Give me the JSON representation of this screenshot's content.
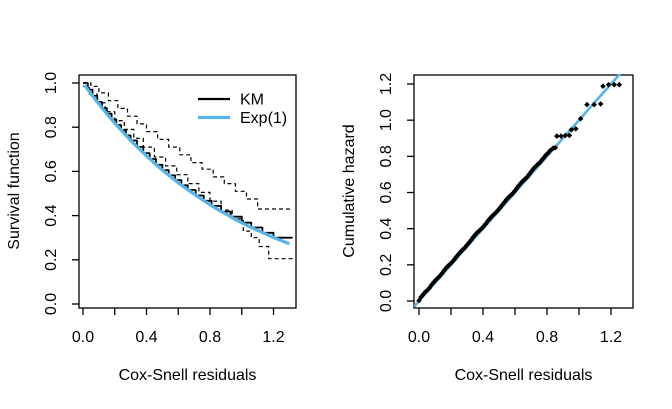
{
  "figure": {
    "background": "#ffffff",
    "text_color": "#000000",
    "accent_blue": "#56B4E9",
    "line_black": "#000000"
  },
  "chart_data": [
    {
      "type": "line",
      "title": "",
      "xlabel": "Cox-Snell residuals",
      "ylabel": "Survival function",
      "xlim": [
        -0.03,
        1.34
      ],
      "ylim": [
        -0.02,
        1.04
      ],
      "grid": false,
      "xticks": {
        "values": [
          0.0,
          0.2,
          0.4,
          0.6,
          0.8,
          1.0,
          1.2
        ],
        "labels": [
          "0.0",
          "",
          "0.4",
          "",
          "0.8",
          "",
          "1.2"
        ]
      },
      "yticks": {
        "values": [
          0.0,
          0.2,
          0.4,
          0.6,
          0.8,
          1.0
        ],
        "labels": [
          "0.0",
          "0.2",
          "0.4",
          "0.6",
          "0.8",
          "1.0"
        ]
      },
      "legend": {
        "position": "topright",
        "entries": [
          {
            "label": "KM",
            "color": "#000000",
            "line_width": 2.2
          },
          {
            "label": "Exp(1)",
            "color": "#56B4E9",
            "line_width": 3.2
          }
        ]
      },
      "series": [
        {
          "name": "km-upper-ci",
          "style": "step",
          "dash": "dashed",
          "width": 1.2,
          "color": "#000000",
          "x": [
            0.0,
            0.05,
            0.1,
            0.16,
            0.22,
            0.28,
            0.34,
            0.4,
            0.47,
            0.54,
            0.61,
            0.68,
            0.75,
            0.82,
            0.89,
            0.96,
            1.03,
            1.1,
            1.32
          ],
          "y": [
            1.0,
            0.985,
            0.955,
            0.92,
            0.885,
            0.85,
            0.815,
            0.78,
            0.745,
            0.71,
            0.675,
            0.64,
            0.61,
            0.575,
            0.545,
            0.51,
            0.475,
            0.43,
            0.43
          ]
        },
        {
          "name": "km-lower-ci",
          "style": "step",
          "dash": "dashed",
          "width": 1.2,
          "color": "#000000",
          "x": [
            0.0,
            0.04,
            0.09,
            0.14,
            0.2,
            0.26,
            0.32,
            0.38,
            0.45,
            0.52,
            0.59,
            0.66,
            0.73,
            0.8,
            0.87,
            0.94,
            1.01,
            1.06,
            1.11,
            1.17,
            1.32
          ],
          "y": [
            0.985,
            0.95,
            0.91,
            0.87,
            0.83,
            0.79,
            0.75,
            0.71,
            0.665,
            0.625,
            0.585,
            0.545,
            0.505,
            0.465,
            0.425,
            0.385,
            0.33,
            0.3,
            0.26,
            0.205,
            0.205
          ]
        },
        {
          "name": "km",
          "style": "step",
          "dash": "solid",
          "width": 1.8,
          "color": "#000000",
          "x": [
            0.0,
            0.03,
            0.06,
            0.09,
            0.12,
            0.15,
            0.18,
            0.21,
            0.24,
            0.27,
            0.3,
            0.34,
            0.38,
            0.42,
            0.46,
            0.5,
            0.54,
            0.58,
            0.62,
            0.66,
            0.71,
            0.76,
            0.81,
            0.87,
            0.93,
            1.0,
            1.06,
            1.13,
            1.2,
            1.32
          ],
          "y": [
            1.0,
            0.97,
            0.942,
            0.914,
            0.887,
            0.861,
            0.835,
            0.81,
            0.786,
            0.763,
            0.74,
            0.711,
            0.683,
            0.656,
            0.63,
            0.606,
            0.582,
            0.56,
            0.537,
            0.516,
            0.491,
            0.467,
            0.444,
            0.418,
            0.395,
            0.368,
            0.346,
            0.322,
            0.3,
            0.3
          ]
        },
        {
          "name": "exp1",
          "style": "line",
          "dash": "solid",
          "width": 3.2,
          "color": "#56B4E9",
          "x": [
            0.01,
            0.06,
            0.11,
            0.16,
            0.21,
            0.26,
            0.31,
            0.36,
            0.41,
            0.46,
            0.51,
            0.56,
            0.61,
            0.66,
            0.71,
            0.76,
            0.81,
            0.86,
            0.91,
            0.96,
            1.01,
            1.06,
            1.11,
            1.16,
            1.21,
            1.26,
            1.3
          ],
          "y": [
            0.99,
            0.942,
            0.896,
            0.852,
            0.811,
            0.771,
            0.733,
            0.698,
            0.664,
            0.631,
            0.6,
            0.571,
            0.543,
            0.517,
            0.492,
            0.468,
            0.445,
            0.423,
            0.403,
            0.383,
            0.364,
            0.346,
            0.33,
            0.314,
            0.298,
            0.284,
            0.273
          ]
        }
      ]
    },
    {
      "type": "scatter",
      "title": "",
      "xlabel": "Cox-Snell residuals",
      "ylabel": "Cumulative hazard",
      "xlim": [
        -0.03,
        1.34
      ],
      "ylim": [
        -0.04,
        1.25
      ],
      "grid": false,
      "xticks": {
        "values": [
          0.0,
          0.2,
          0.4,
          0.6,
          0.8,
          1.0,
          1.2
        ],
        "labels": [
          "0.0",
          "",
          "0.4",
          "",
          "0.8",
          "",
          "1.2"
        ]
      },
      "yticks": {
        "values": [
          0.0,
          0.2,
          0.4,
          0.6,
          0.8,
          1.0,
          1.2
        ],
        "labels": [
          "0.0",
          "0.2",
          "0.4",
          "0.6",
          "0.8",
          "1.0",
          "1.2"
        ]
      },
      "refline": {
        "intercept": 0,
        "slope": 1,
        "color": "#56B4E9",
        "width": 2.6
      },
      "points": {
        "marker": "diamond",
        "color": "#000000",
        "size": 2.8,
        "x": [
          0.0,
          0.013,
          0.026,
          0.039,
          0.052,
          0.065,
          0.078,
          0.091,
          0.104,
          0.117,
          0.13,
          0.143,
          0.156,
          0.169,
          0.182,
          0.195,
          0.208,
          0.221,
          0.234,
          0.247,
          0.26,
          0.273,
          0.286,
          0.299,
          0.312,
          0.325,
          0.338,
          0.351,
          0.364,
          0.377,
          0.39,
          0.403,
          0.416,
          0.429,
          0.442,
          0.455,
          0.468,
          0.481,
          0.494,
          0.507,
          0.52,
          0.533,
          0.546,
          0.559,
          0.572,
          0.585,
          0.598,
          0.611,
          0.624,
          0.637,
          0.65,
          0.663,
          0.676,
          0.689,
          0.702,
          0.715,
          0.728,
          0.741,
          0.754,
          0.767,
          0.78,
          0.792,
          0.806,
          0.82,
          0.838,
          0.852,
          0.862,
          0.888,
          0.915,
          0.94,
          0.952,
          0.98,
          1.01,
          1.05,
          1.095,
          1.135,
          1.15,
          1.185,
          1.22,
          1.252
        ],
        "y": [
          0.002,
          0.022,
          0.036,
          0.049,
          0.06,
          0.072,
          0.088,
          0.103,
          0.115,
          0.126,
          0.138,
          0.152,
          0.168,
          0.182,
          0.194,
          0.205,
          0.216,
          0.23,
          0.245,
          0.259,
          0.272,
          0.284,
          0.295,
          0.308,
          0.322,
          0.337,
          0.352,
          0.366,
          0.378,
          0.389,
          0.4,
          0.412,
          0.426,
          0.441,
          0.455,
          0.468,
          0.479,
          0.49,
          0.502,
          0.516,
          0.531,
          0.546,
          0.56,
          0.572,
          0.583,
          0.594,
          0.608,
          0.623,
          0.638,
          0.652,
          0.664,
          0.675,
          0.686,
          0.7,
          0.716,
          0.731,
          0.744,
          0.755,
          0.765,
          0.778,
          0.792,
          0.806,
          0.818,
          0.832,
          0.845,
          0.848,
          0.912,
          0.912,
          0.916,
          0.916,
          0.947,
          0.952,
          1.008,
          1.086,
          1.086,
          1.09,
          1.188,
          1.196,
          1.196,
          1.196
        ]
      }
    }
  ]
}
